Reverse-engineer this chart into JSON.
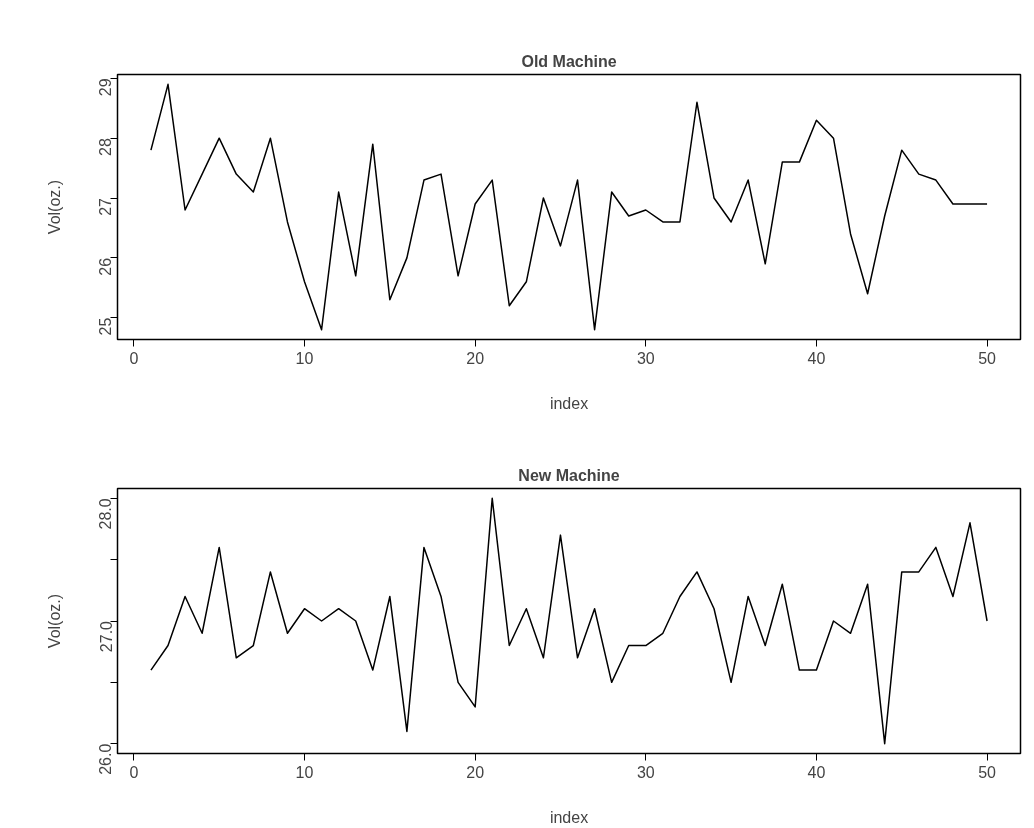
{
  "chart_data": [
    {
      "type": "line",
      "title": "Old Machine",
      "xlabel": "index",
      "ylabel": "Vol(oz.)",
      "x": [
        1,
        2,
        3,
        4,
        5,
        6,
        7,
        8,
        9,
        10,
        11,
        12,
        13,
        14,
        15,
        16,
        17,
        18,
        19,
        20,
        21,
        22,
        23,
        24,
        25,
        26,
        27,
        28,
        29,
        30,
        31,
        32,
        33,
        34,
        35,
        36,
        37,
        38,
        39,
        40,
        41,
        42,
        43,
        44,
        45,
        46,
        47,
        48,
        49,
        50
      ],
      "series": [
        {
          "color": "#000000",
          "values": [
            27.8,
            28.9,
            26.8,
            27.4,
            28.0,
            27.4,
            27.1,
            28.0,
            26.6,
            25.6,
            24.8,
            27.1,
            25.7,
            27.9,
            25.3,
            26.0,
            27.3,
            27.4,
            25.7,
            26.9,
            27.3,
            25.2,
            25.6,
            27.0,
            26.2,
            27.3,
            24.8,
            27.1,
            26.7,
            26.8,
            26.6,
            26.6,
            28.6,
            27.0,
            26.6,
            27.3,
            25.9,
            27.6,
            27.6,
            28.3,
            28.0,
            26.4,
            25.4,
            26.7,
            27.8,
            27.4,
            27.3,
            26.9,
            26.9,
            26.9
          ]
        }
      ],
      "xlim": [
        -0.96,
        51.96
      ],
      "ylim": [
        24.636,
        29.064
      ],
      "xticks": [
        0,
        10,
        20,
        30,
        40,
        50
      ],
      "yticks": [
        25,
        26,
        27,
        28,
        29
      ]
    },
    {
      "type": "line",
      "title": "New Machine",
      "xlabel": "index",
      "ylabel": "Vol(oz.)",
      "x": [
        1,
        2,
        3,
        4,
        5,
        6,
        7,
        8,
        9,
        10,
        11,
        12,
        13,
        14,
        15,
        16,
        17,
        18,
        19,
        20,
        21,
        22,
        23,
        24,
        25,
        26,
        27,
        28,
        29,
        30,
        31,
        32,
        33,
        34,
        35,
        36,
        37,
        38,
        39,
        40,
        41,
        42,
        43,
        44,
        45,
        46,
        47,
        48,
        49,
        50
      ],
      "series": [
        {
          "color": "#000000",
          "values": [
            26.6,
            26.8,
            27.2,
            26.9,
            27.6,
            26.7,
            26.8,
            27.4,
            26.9,
            27.1,
            27.0,
            27.1,
            27.0,
            26.6,
            27.2,
            26.1,
            27.6,
            27.2,
            26.5,
            26.3,
            28.0,
            26.8,
            27.1,
            26.7,
            27.7,
            26.7,
            27.1,
            26.5,
            26.8,
            26.8,
            26.9,
            27.2,
            27.4,
            27.1,
            26.5,
            27.2,
            26.8,
            27.3,
            26.6,
            26.6,
            27.0,
            26.9,
            27.3,
            26.0,
            27.4,
            27.4,
            27.6,
            27.2,
            27.8,
            27.0
          ]
        }
      ],
      "xlim": [
        -0.96,
        51.96
      ],
      "ylim": [
        25.92,
        28.08
      ],
      "xticks": [
        0,
        10,
        20,
        30,
        40,
        50
      ],
      "yticks": [
        {
          "value": 26.0,
          "label": "26.0"
        },
        {
          "value": 26.5,
          "label": null
        },
        {
          "value": 27.0,
          "label": "27.0"
        },
        {
          "value": 27.5,
          "label": null
        },
        {
          "value": 28.0,
          "label": "28.0"
        }
      ]
    }
  ]
}
